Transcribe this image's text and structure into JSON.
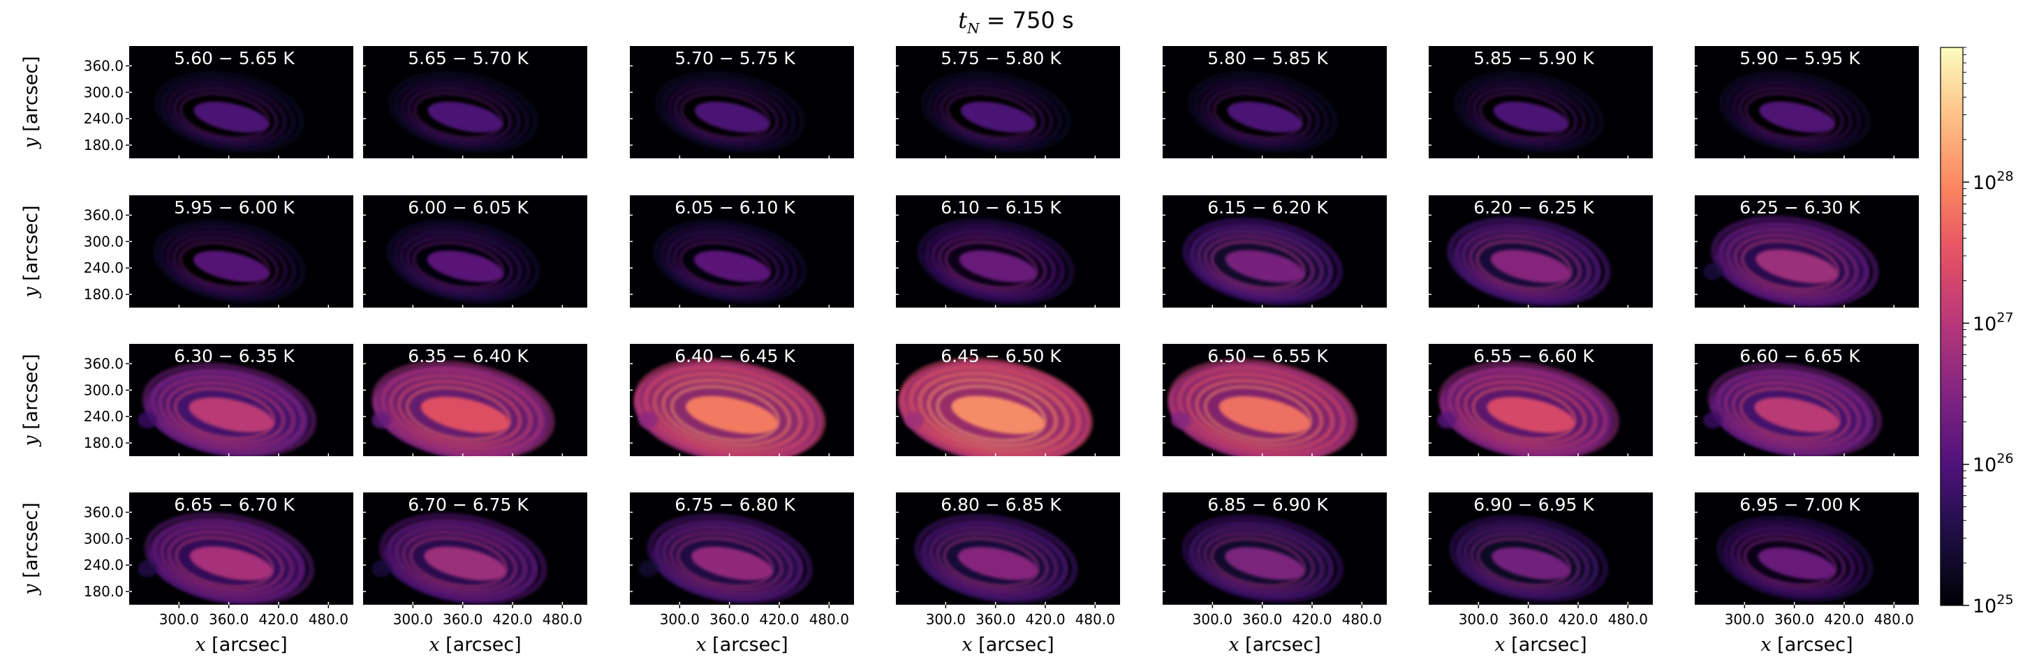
{
  "figure": {
    "title_var": "t",
    "title_sub": "N",
    "title_rest": " = 750 s"
  },
  "chart_data": {
    "type": "heatmap",
    "layout": {
      "rows": 4,
      "cols": 7
    },
    "panels": [
      {
        "label": "5.60 − 5.65 K",
        "log_t_min": 5.6,
        "log_t_max": 5.65
      },
      {
        "label": "5.65 − 5.70 K",
        "log_t_min": 5.65,
        "log_t_max": 5.7
      },
      {
        "label": "5.70 − 5.75 K",
        "log_t_min": 5.7,
        "log_t_max": 5.75
      },
      {
        "label": "5.75 − 5.80 K",
        "log_t_min": 5.75,
        "log_t_max": 5.8
      },
      {
        "label": "5.80 − 5.85 K",
        "log_t_min": 5.8,
        "log_t_max": 5.85
      },
      {
        "label": "5.85 − 5.90 K",
        "log_t_min": 5.85,
        "log_t_max": 5.9
      },
      {
        "label": "5.90 − 5.95 K",
        "log_t_min": 5.9,
        "log_t_max": 5.95
      },
      {
        "label": "5.95 − 6.00 K",
        "log_t_min": 5.95,
        "log_t_max": 6.0
      },
      {
        "label": "6.00 − 6.05 K",
        "log_t_min": 6.0,
        "log_t_max": 6.05
      },
      {
        "label": "6.05 − 6.10 K",
        "log_t_min": 6.05,
        "log_t_max": 6.1
      },
      {
        "label": "6.10 − 6.15 K",
        "log_t_min": 6.1,
        "log_t_max": 6.15
      },
      {
        "label": "6.15 − 6.20 K",
        "log_t_min": 6.15,
        "log_t_max": 6.2
      },
      {
        "label": "6.20 − 6.25 K",
        "log_t_min": 6.2,
        "log_t_max": 6.25
      },
      {
        "label": "6.25 − 6.30 K",
        "log_t_min": 6.25,
        "log_t_max": 6.3
      },
      {
        "label": "6.30 − 6.35 K",
        "log_t_min": 6.3,
        "log_t_max": 6.35
      },
      {
        "label": "6.35 − 6.40 K",
        "log_t_min": 6.35,
        "log_t_max": 6.4
      },
      {
        "label": "6.40 − 6.45 K",
        "log_t_min": 6.4,
        "log_t_max": 6.45
      },
      {
        "label": "6.45 − 6.50 K",
        "log_t_min": 6.45,
        "log_t_max": 6.5
      },
      {
        "label": "6.50 − 6.55 K",
        "log_t_min": 6.5,
        "log_t_max": 6.55
      },
      {
        "label": "6.55 − 6.60 K",
        "log_t_min": 6.55,
        "log_t_max": 6.6
      },
      {
        "label": "6.60 − 6.65 K",
        "log_t_min": 6.6,
        "log_t_max": 6.65
      },
      {
        "label": "6.65 − 6.70 K",
        "log_t_min": 6.65,
        "log_t_max": 6.7
      },
      {
        "label": "6.70 − 6.75 K",
        "log_t_min": 6.7,
        "log_t_max": 6.75
      },
      {
        "label": "6.75 − 6.80 K",
        "log_t_min": 6.75,
        "log_t_max": 6.8
      },
      {
        "label": "6.80 − 6.85 K",
        "log_t_min": 6.8,
        "log_t_max": 6.85
      },
      {
        "label": "6.85 − 6.90 K",
        "log_t_min": 6.85,
        "log_t_max": 6.9
      },
      {
        "label": "6.90 − 6.95 K",
        "log_t_min": 6.9,
        "log_t_max": 6.95
      },
      {
        "label": "6.95 − 7.00 K",
        "log_t_min": 6.95,
        "log_t_max": 7.0
      }
    ],
    "xlabel_var": "x",
    "xlabel_unit": " [arcsec]",
    "ylabel_var": "y",
    "ylabel_unit": " [arcsec]",
    "xlim": [
      240,
      510
    ],
    "ylim": [
      150,
      405
    ],
    "xticks": [
      300,
      360,
      420,
      480
    ],
    "xtick_labels": [
      "300.0",
      "360.0",
      "420.0",
      "480.0"
    ],
    "yticks": [
      180,
      240,
      300,
      360
    ],
    "ytick_labels": [
      "180.0",
      "240.0",
      "300.0",
      "360.0"
    ],
    "colorbar": {
      "scale": "log",
      "range": [
        1e+25,
        9e+28
      ],
      "colormap": "magma",
      "ticks": [
        {
          "mantissa": "10",
          "exp": "25",
          "log": 25
        },
        {
          "mantissa": "10",
          "exp": "26",
          "log": 26
        },
        {
          "mantissa": "10",
          "exp": "27",
          "log": 27
        },
        {
          "mantissa": "10",
          "exp": "28",
          "log": 28
        }
      ]
    },
    "peak_intensity_log": [
      26.0,
      26.0,
      26.0,
      26.0,
      26.0,
      26.0,
      26.05,
      26.1,
      26.15,
      26.15,
      26.3,
      26.45,
      26.6,
      26.8,
      27.1,
      27.5,
      27.9,
      28.05,
      27.8,
      27.4,
      27.1,
      26.9,
      26.8,
      26.7,
      26.6,
      26.5,
      26.4,
      26.3
    ],
    "ring_strength": [
      0.3,
      0.3,
      0.3,
      0.3,
      0.3,
      0.3,
      0.3,
      0.3,
      0.3,
      0.3,
      0.6,
      0.9,
      0.7,
      0.6,
      0.5,
      0.5,
      0.5,
      0.5,
      0.5,
      0.5,
      0.5,
      0.4,
      0.4,
      0.4,
      0.5,
      0.5,
      0.6,
      0.6
    ],
    "grid": false
  }
}
